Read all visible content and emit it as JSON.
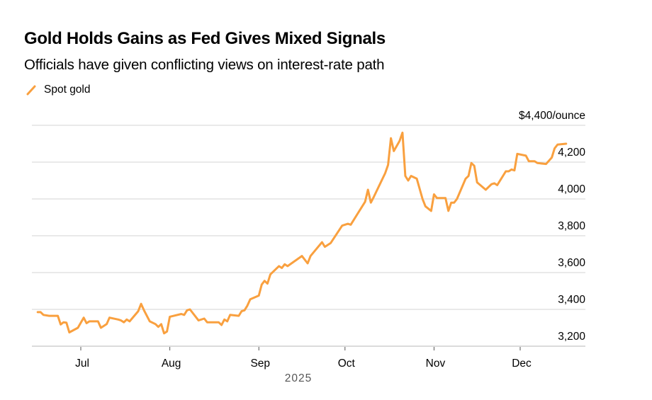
{
  "header": {
    "title": "Gold Holds Gains as Fed Gives Mixed Signals",
    "subtitle": "Officials have given conflicting views on interest-rate path"
  },
  "chart_data": {
    "type": "line",
    "title": "Gold Holds Gains as Fed Gives Mixed Signals",
    "subtitle": "Officials have given conflicting views on interest-rate path",
    "xlabel": "2025",
    "ylabel": "$/ounce",
    "unit_label": "$4,400/ounce",
    "ylim": [
      3150,
      4400
    ],
    "yticks": [
      3200,
      3400,
      3600,
      3800,
      4000,
      4200,
      4400
    ],
    "ytick_labels": [
      "3,200",
      "3,400",
      "3,600",
      "3,800",
      "4,000",
      "4,200",
      "$4,400/ounce"
    ],
    "xticks": [
      "2025-07-01",
      "2025-08-01",
      "2025-09-01",
      "2025-10-01",
      "2025-11-01",
      "2025-12-01"
    ],
    "xtick_labels": [
      "Jul",
      "Aug",
      "Sep",
      "Oct",
      "Nov",
      "Dec"
    ],
    "xaxis_year_label": "2025",
    "grid": true,
    "legend_position": "top-left",
    "series": [
      {
        "name": "Spot gold",
        "color": "#f9a03f",
        "points": [
          [
            "2025-06-16",
            3385
          ],
          [
            "2025-06-17",
            3385
          ],
          [
            "2025-06-18",
            3370
          ],
          [
            "2025-06-20",
            3365
          ],
          [
            "2025-06-23",
            3365
          ],
          [
            "2025-06-24",
            3318
          ],
          [
            "2025-06-25",
            3330
          ],
          [
            "2025-06-26",
            3328
          ],
          [
            "2025-06-27",
            3275
          ],
          [
            "2025-06-30",
            3300
          ],
          [
            "2025-07-02",
            3355
          ],
          [
            "2025-07-03",
            3325
          ],
          [
            "2025-07-04",
            3335
          ],
          [
            "2025-07-07",
            3335
          ],
          [
            "2025-07-08",
            3300
          ],
          [
            "2025-07-10",
            3320
          ],
          [
            "2025-07-11",
            3355
          ],
          [
            "2025-07-14",
            3345
          ],
          [
            "2025-07-15",
            3340
          ],
          [
            "2025-07-16",
            3330
          ],
          [
            "2025-07-17",
            3345
          ],
          [
            "2025-07-18",
            3335
          ],
          [
            "2025-07-21",
            3390
          ],
          [
            "2025-07-22",
            3430
          ],
          [
            "2025-07-23",
            3395
          ],
          [
            "2025-07-25",
            3335
          ],
          [
            "2025-07-27",
            3320
          ],
          [
            "2025-07-28",
            3305
          ],
          [
            "2025-07-29",
            3320
          ],
          [
            "2025-07-30",
            3270
          ],
          [
            "2025-07-31",
            3280
          ],
          [
            "2025-08-01",
            3360
          ],
          [
            "2025-08-05",
            3375
          ],
          [
            "2025-08-06",
            3370
          ],
          [
            "2025-08-07",
            3395
          ],
          [
            "2025-08-08",
            3400
          ],
          [
            "2025-08-11",
            3340
          ],
          [
            "2025-08-13",
            3350
          ],
          [
            "2025-08-14",
            3330
          ],
          [
            "2025-08-18",
            3330
          ],
          [
            "2025-08-19",
            3315
          ],
          [
            "2025-08-20",
            3345
          ],
          [
            "2025-08-21",
            3335
          ],
          [
            "2025-08-22",
            3370
          ],
          [
            "2025-08-25",
            3365
          ],
          [
            "2025-08-26",
            3390
          ],
          [
            "2025-08-27",
            3395
          ],
          [
            "2025-08-28",
            3420
          ],
          [
            "2025-08-29",
            3455
          ],
          [
            "2025-09-01",
            3475
          ],
          [
            "2025-09-02",
            3535
          ],
          [
            "2025-09-03",
            3555
          ],
          [
            "2025-09-04",
            3540
          ],
          [
            "2025-09-05",
            3590
          ],
          [
            "2025-09-08",
            3635
          ],
          [
            "2025-09-09",
            3625
          ],
          [
            "2025-09-10",
            3645
          ],
          [
            "2025-09-11",
            3635
          ],
          [
            "2025-09-16",
            3690
          ],
          [
            "2025-09-18",
            3650
          ],
          [
            "2025-09-19",
            3690
          ],
          [
            "2025-09-23",
            3765
          ],
          [
            "2025-09-24",
            3740
          ],
          [
            "2025-09-26",
            3760
          ],
          [
            "2025-09-30",
            3855
          ],
          [
            "2025-10-02",
            3865
          ],
          [
            "2025-10-03",
            3860
          ],
          [
            "2025-10-08",
            3985
          ],
          [
            "2025-10-09",
            4050
          ],
          [
            "2025-10-10",
            3980
          ],
          [
            "2025-10-11",
            4010
          ],
          [
            "2025-10-15",
            4140
          ],
          [
            "2025-10-16",
            4185
          ],
          [
            "2025-10-17",
            4330
          ],
          [
            "2025-10-18",
            4260
          ],
          [
            "2025-10-20",
            4315
          ],
          [
            "2025-10-21",
            4360
          ],
          [
            "2025-10-22",
            4125
          ],
          [
            "2025-10-23",
            4100
          ],
          [
            "2025-10-24",
            4125
          ],
          [
            "2025-10-26",
            4110
          ],
          [
            "2025-10-28",
            4000
          ],
          [
            "2025-10-29",
            3960
          ],
          [
            "2025-10-31",
            3935
          ],
          [
            "2025-11-01",
            4025
          ],
          [
            "2025-11-02",
            4005
          ],
          [
            "2025-11-05",
            4005
          ],
          [
            "2025-11-06",
            3935
          ],
          [
            "2025-11-07",
            3980
          ],
          [
            "2025-11-08",
            3980
          ],
          [
            "2025-11-09",
            4000
          ],
          [
            "2025-11-12",
            4110
          ],
          [
            "2025-11-13",
            4125
          ],
          [
            "2025-11-14",
            4195
          ],
          [
            "2025-11-15",
            4180
          ],
          [
            "2025-11-16",
            4090
          ],
          [
            "2025-11-19",
            4050
          ],
          [
            "2025-11-21",
            4080
          ],
          [
            "2025-11-22",
            4085
          ],
          [
            "2025-11-23",
            4075
          ],
          [
            "2025-11-26",
            4150
          ],
          [
            "2025-11-27",
            4150
          ],
          [
            "2025-11-28",
            4160
          ],
          [
            "2025-11-29",
            4155
          ],
          [
            "2025-11-30",
            4245
          ],
          [
            "2025-12-03",
            4235
          ],
          [
            "2025-12-04",
            4205
          ],
          [
            "2025-12-06",
            4205
          ],
          [
            "2025-12-07",
            4195
          ],
          [
            "2025-12-10",
            4190
          ],
          [
            "2025-12-12",
            4225
          ],
          [
            "2025-12-13",
            4275
          ],
          [
            "2025-12-14",
            4295
          ],
          [
            "2025-12-17",
            4300
          ]
        ]
      }
    ]
  }
}
